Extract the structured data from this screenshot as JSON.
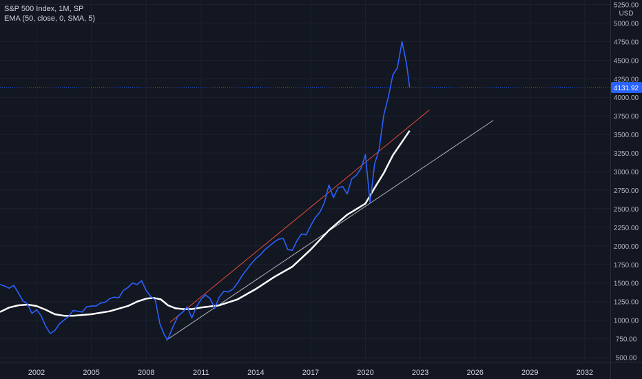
{
  "chart_data": {
    "type": "line",
    "title": "S&P 500 Index, 1M, SP",
    "indicator_label": "EMA (50, close, 0, SMA, 5)",
    "currency": "USD",
    "last_price": "4131.92",
    "y_ticks": [
      "5250.00",
      "5000.00",
      "4750.00",
      "4500.00",
      "4250.00",
      "4000.00",
      "3750.00",
      "3500.00",
      "3250.00",
      "3000.00",
      "2750.00",
      "2500.00",
      "2250.00",
      "2000.00",
      "1750.00",
      "1500.00",
      "1250.00",
      "1000.00",
      "750.00",
      "500.00"
    ],
    "x_ticks": [
      "2002",
      "2005",
      "2008",
      "2011",
      "2014",
      "2017",
      "2020",
      "2023",
      "2026",
      "2029",
      "2032"
    ],
    "ylim": [
      440,
      5310
    ],
    "xlim": [
      2000.0,
      2033.4
    ],
    "grid": true,
    "colors": {
      "background": "#131722",
      "grid": "#1e2230",
      "price_line": "#2962ff",
      "ema_line": "#ffffff",
      "upper_trend": "#e74c3c",
      "lower_trend": "#b2b5be",
      "axis_text": "#b2b5be",
      "price_label_bg": "#2962ff",
      "price_label_text": "#ffffff"
    },
    "series": [
      {
        "name": "S&P 500 Index",
        "points": [
          [
            2000.0,
            1480
          ],
          [
            2000.25,
            1460
          ],
          [
            2000.5,
            1430
          ],
          [
            2000.75,
            1470
          ],
          [
            2001.0,
            1370
          ],
          [
            2001.25,
            1260
          ],
          [
            2001.5,
            1220
          ],
          [
            2001.75,
            1090
          ],
          [
            2002.0,
            1140
          ],
          [
            2002.25,
            1060
          ],
          [
            2002.5,
            920
          ],
          [
            2002.75,
            820
          ],
          [
            2003.0,
            860
          ],
          [
            2003.25,
            950
          ],
          [
            2003.5,
            1000
          ],
          [
            2003.75,
            1050
          ],
          [
            2004.0,
            1130
          ],
          [
            2004.25,
            1120
          ],
          [
            2004.5,
            1110
          ],
          [
            2004.75,
            1180
          ],
          [
            2005.0,
            1190
          ],
          [
            2005.25,
            1190
          ],
          [
            2005.5,
            1230
          ],
          [
            2005.75,
            1240
          ],
          [
            2006.0,
            1290
          ],
          [
            2006.25,
            1310
          ],
          [
            2006.5,
            1300
          ],
          [
            2006.75,
            1400
          ],
          [
            2007.0,
            1440
          ],
          [
            2007.25,
            1500
          ],
          [
            2007.5,
            1480
          ],
          [
            2007.75,
            1530
          ],
          [
            2008.0,
            1400
          ],
          [
            2008.25,
            1320
          ],
          [
            2008.5,
            1270
          ],
          [
            2008.75,
            950
          ],
          [
            2009.0,
            800
          ],
          [
            2009.17,
            735
          ],
          [
            2009.5,
            930
          ],
          [
            2009.75,
            1060
          ],
          [
            2010.0,
            1110
          ],
          [
            2010.25,
            1180
          ],
          [
            2010.5,
            1030
          ],
          [
            2010.75,
            1180
          ],
          [
            2011.0,
            1280
          ],
          [
            2011.25,
            1340
          ],
          [
            2011.5,
            1290
          ],
          [
            2011.75,
            1160
          ],
          [
            2012.0,
            1310
          ],
          [
            2012.25,
            1390
          ],
          [
            2012.5,
            1380
          ],
          [
            2012.75,
            1420
          ],
          [
            2013.0,
            1500
          ],
          [
            2013.25,
            1600
          ],
          [
            2013.5,
            1680
          ],
          [
            2013.75,
            1760
          ],
          [
            2014.0,
            1830
          ],
          [
            2014.25,
            1880
          ],
          [
            2014.5,
            1950
          ],
          [
            2014.75,
            2000
          ],
          [
            2015.0,
            2050
          ],
          [
            2015.25,
            2090
          ],
          [
            2015.5,
            2100
          ],
          [
            2015.75,
            1950
          ],
          [
            2016.0,
            1940
          ],
          [
            2016.25,
            2070
          ],
          [
            2016.5,
            2160
          ],
          [
            2016.75,
            2150
          ],
          [
            2017.0,
            2270
          ],
          [
            2017.25,
            2380
          ],
          [
            2017.5,
            2450
          ],
          [
            2017.75,
            2580
          ],
          [
            2018.0,
            2820
          ],
          [
            2018.25,
            2650
          ],
          [
            2018.5,
            2780
          ],
          [
            2018.75,
            2800
          ],
          [
            2019.0,
            2700
          ],
          [
            2019.25,
            2900
          ],
          [
            2019.5,
            2950
          ],
          [
            2019.75,
            3040
          ],
          [
            2020.0,
            3230
          ],
          [
            2020.25,
            2580
          ],
          [
            2020.5,
            3100
          ],
          [
            2020.75,
            3300
          ],
          [
            2021.0,
            3760
          ],
          [
            2021.25,
            4000
          ],
          [
            2021.5,
            4300
          ],
          [
            2021.75,
            4400
          ],
          [
            2022.0,
            4750
          ],
          [
            2022.25,
            4450
          ],
          [
            2022.42,
            4131.92
          ]
        ]
      },
      {
        "name": "EMA (50, close, 0, SMA, 5)",
        "points": [
          [
            2000.0,
            1110
          ],
          [
            2000.5,
            1170
          ],
          [
            2001.0,
            1200
          ],
          [
            2001.5,
            1210
          ],
          [
            2002.0,
            1190
          ],
          [
            2002.5,
            1140
          ],
          [
            2003.0,
            1080
          ],
          [
            2003.5,
            1060
          ],
          [
            2004.0,
            1060
          ],
          [
            2005.0,
            1080
          ],
          [
            2006.0,
            1120
          ],
          [
            2007.0,
            1190
          ],
          [
            2007.5,
            1250
          ],
          [
            2008.0,
            1290
          ],
          [
            2008.4,
            1300
          ],
          [
            2008.8,
            1280
          ],
          [
            2009.2,
            1200
          ],
          [
            2009.6,
            1160
          ],
          [
            2010.0,
            1150
          ],
          [
            2010.5,
            1150
          ],
          [
            2011.0,
            1170
          ],
          [
            2012.0,
            1200
          ],
          [
            2013.0,
            1280
          ],
          [
            2014.0,
            1420
          ],
          [
            2015.0,
            1580
          ],
          [
            2016.0,
            1720
          ],
          [
            2017.0,
            1950
          ],
          [
            2018.0,
            2210
          ],
          [
            2019.0,
            2420
          ],
          [
            2020.0,
            2570
          ],
          [
            2020.5,
            2780
          ],
          [
            2021.0,
            2980
          ],
          [
            2021.5,
            3220
          ],
          [
            2022.0,
            3400
          ],
          [
            2022.42,
            3550
          ]
        ]
      }
    ],
    "trendlines": [
      {
        "name": "upper",
        "x": [
          2009.3,
          2023.5
        ],
        "y": [
          970,
          3830
        ]
      },
      {
        "name": "lower",
        "x": [
          2009.1,
          2027.0
        ],
        "y": [
          730,
          3690
        ]
      }
    ]
  }
}
